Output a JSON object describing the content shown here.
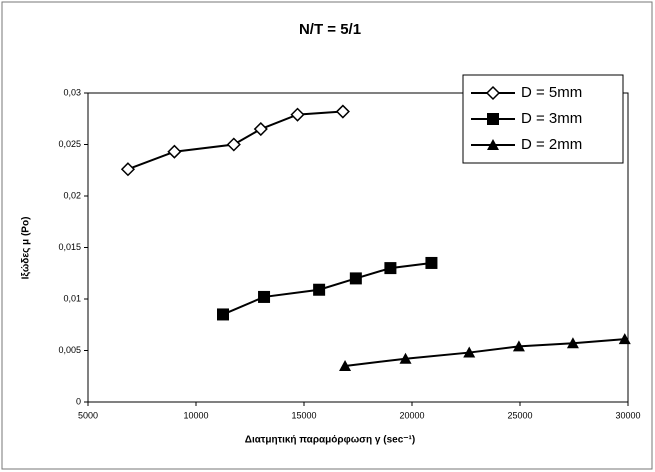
{
  "chart_data": {
    "type": "line",
    "title": "N/T = 5/1",
    "xlabel": "Διατμητική παραμόρφωση γ (sec⁻¹)",
    "ylabel": "Ιξώδες μ (Po)",
    "xlim": [
      5000,
      30000
    ],
    "xticks": [
      5000,
      10000,
      15000,
      20000,
      25000,
      30000
    ],
    "ylim": [
      0,
      0.03
    ],
    "yticks": [
      0,
      {
        "value": 0.005,
        "label": "0,005"
      },
      {
        "value": 0.01,
        "label": "0,01"
      },
      {
        "value": 0.015,
        "label": "0,015"
      },
      {
        "value": 0.02,
        "label": "0,02"
      },
      {
        "value": 0.025,
        "label": "0,025"
      },
      {
        "value": 0.03,
        "label": "0,03"
      }
    ],
    "grid": false,
    "legend": "upper right",
    "series": [
      {
        "name": "D = 5mm",
        "color": "#000000",
        "marker": "diamond",
        "x": [
          6850,
          9000,
          11750,
          13000,
          14700,
          16800
        ],
        "values": [
          0.0226,
          0.0243,
          0.025,
          0.0265,
          0.0279,
          0.0282
        ]
      },
      {
        "name": "D = 3mm",
        "color": "#000000",
        "marker": "square",
        "x": [
          11250,
          13150,
          15700,
          17400,
          19000,
          20900
        ],
        "values": [
          0.0085,
          0.0102,
          0.0109,
          0.012,
          0.013,
          0.0135
        ]
      },
      {
        "name": "D = 2mm",
        "color": "#000000",
        "marker": "triangle",
        "x": [
          16900,
          19700,
          22650,
          24950,
          27450,
          29850
        ],
        "values": [
          0.0035,
          0.0042,
          0.0048,
          0.0054,
          0.0057,
          0.0061
        ]
      }
    ]
  }
}
